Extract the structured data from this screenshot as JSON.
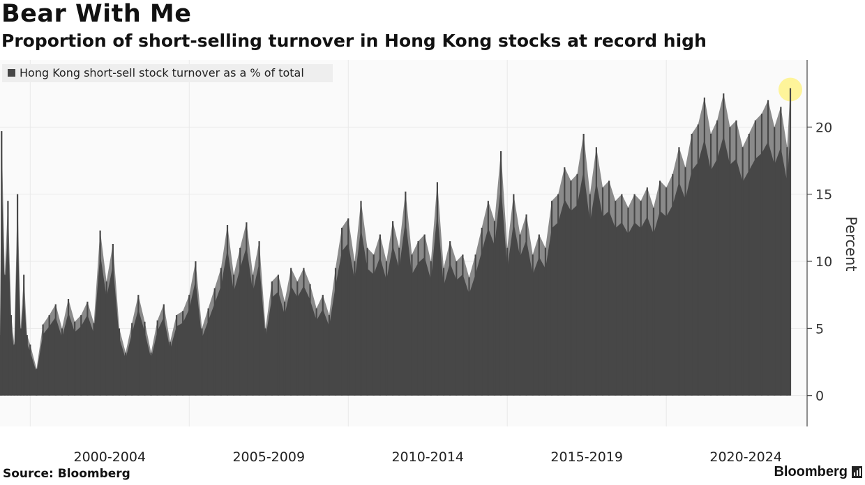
{
  "header": {
    "title": "Bear With Me",
    "subtitle": "Proportion of short-selling turnover in Hong Kong stocks at record high"
  },
  "footer": {
    "source": "Source: Bloomberg",
    "brand": "Bloomberg"
  },
  "colors": {
    "area": "#474747",
    "area_light": "#8a8a8a",
    "grid": "#e9e9e9",
    "background": "#fafafa",
    "highlight": "#fff27a"
  },
  "chart_data": {
    "type": "area",
    "title": "Bear With Me",
    "subtitle": "Proportion of short-selling turnover in Hong Kong stocks at record high",
    "legend": "Hong Kong short-sell stock turnover as a % of total",
    "legend_position": "top-left",
    "ylabel": "Percent",
    "xlabel": "",
    "ylim": [
      -2.3,
      25
    ],
    "xlim": [
      1999.05,
      2023.9
    ],
    "yticks": [
      0,
      5,
      10,
      15,
      20
    ],
    "xtick_labels": [
      "2000-2004",
      "2005-2009",
      "2010-2014",
      "2015-2019",
      "2020-2024"
    ],
    "grid": true,
    "highlight": {
      "x": 2023.9,
      "y": 22.9,
      "note": "record high"
    },
    "series": [
      {
        "name": "Hong Kong short-sell stock turnover as a % of total",
        "x": [
          1999.05,
          1999.1,
          1999.2,
          1999.3,
          1999.4,
          1999.5,
          1999.6,
          1999.7,
          1999.8,
          1999.9,
          2000.0,
          2000.2,
          2000.4,
          2000.6,
          2000.8,
          2001.0,
          2001.2,
          2001.4,
          2001.6,
          2001.8,
          2002.0,
          2002.2,
          2002.4,
          2002.6,
          2002.8,
          2003.0,
          2003.2,
          2003.4,
          2003.6,
          2003.8,
          2004.0,
          2004.2,
          2004.4,
          2004.6,
          2004.8,
          2005.0,
          2005.2,
          2005.4,
          2005.6,
          2005.8,
          2006.0,
          2006.2,
          2006.4,
          2006.6,
          2006.8,
          2007.0,
          2007.2,
          2007.4,
          2007.6,
          2007.8,
          2008.0,
          2008.2,
          2008.4,
          2008.6,
          2008.8,
          2009.0,
          2009.2,
          2009.4,
          2009.6,
          2009.8,
          2010.0,
          2010.2,
          2010.4,
          2010.6,
          2010.8,
          2011.0,
          2011.2,
          2011.4,
          2011.6,
          2011.8,
          2012.0,
          2012.2,
          2012.4,
          2012.6,
          2012.8,
          2013.0,
          2013.2,
          2013.4,
          2013.6,
          2013.8,
          2014.0,
          2014.2,
          2014.4,
          2014.6,
          2014.8,
          2015.0,
          2015.2,
          2015.4,
          2015.6,
          2015.8,
          2016.0,
          2016.2,
          2016.4,
          2016.6,
          2016.8,
          2017.0,
          2017.2,
          2017.4,
          2017.6,
          2017.8,
          2018.0,
          2018.2,
          2018.4,
          2018.6,
          2018.8,
          2019.0,
          2019.2,
          2019.4,
          2019.6,
          2019.8,
          2020.0,
          2020.2,
          2020.4,
          2020.6,
          2020.8,
          2021.0,
          2021.2,
          2021.4,
          2021.6,
          2021.8,
          2022.0,
          2022.2,
          2022.4,
          2022.6,
          2022.8,
          2023.0,
          2023.2,
          2023.4,
          2023.6,
          2023.8,
          2023.9
        ],
        "values": [
          4.5,
          19.7,
          9.0,
          14.5,
          6.0,
          3.8,
          15.0,
          5.0,
          9.0,
          4.5,
          3.8,
          2.0,
          5.3,
          6.0,
          6.8,
          5.0,
          7.2,
          5.5,
          6.0,
          7.0,
          5.4,
          12.3,
          8.5,
          11.3,
          5.0,
          3.2,
          5.4,
          7.5,
          5.5,
          3.2,
          5.6,
          6.8,
          4.0,
          6.0,
          6.3,
          7.5,
          10.0,
          5.0,
          6.5,
          8.0,
          9.5,
          12.7,
          9.0,
          11.0,
          12.9,
          9.0,
          11.5,
          5.0,
          8.5,
          9.0,
          7.0,
          9.5,
          8.5,
          9.5,
          8.3,
          6.5,
          7.5,
          6.0,
          9.5,
          12.5,
          13.2,
          10.0,
          14.5,
          11.0,
          10.5,
          12.0,
          10.0,
          13.0,
          11.0,
          15.2,
          10.5,
          11.5,
          12.0,
          10.0,
          15.9,
          9.5,
          11.5,
          10.0,
          10.5,
          8.8,
          10.5,
          12.5,
          14.5,
          13.0,
          18.2,
          11.0,
          15.0,
          12.0,
          13.5,
          10.5,
          12.0,
          11.0,
          14.5,
          15.0,
          17.0,
          16.0,
          16.5,
          19.5,
          15.0,
          18.5,
          15.5,
          16.0,
          14.5,
          15.0,
          14.0,
          15.0,
          14.5,
          15.5,
          14.0,
          16.0,
          15.5,
          16.5,
          18.5,
          17.0,
          19.5,
          20.2,
          22.2,
          19.5,
          20.5,
          22.5,
          20.0,
          20.5,
          18.5,
          19.5,
          20.5,
          21.0,
          22.0,
          20.0,
          21.5,
          18.5,
          22.9
        ]
      }
    ]
  }
}
